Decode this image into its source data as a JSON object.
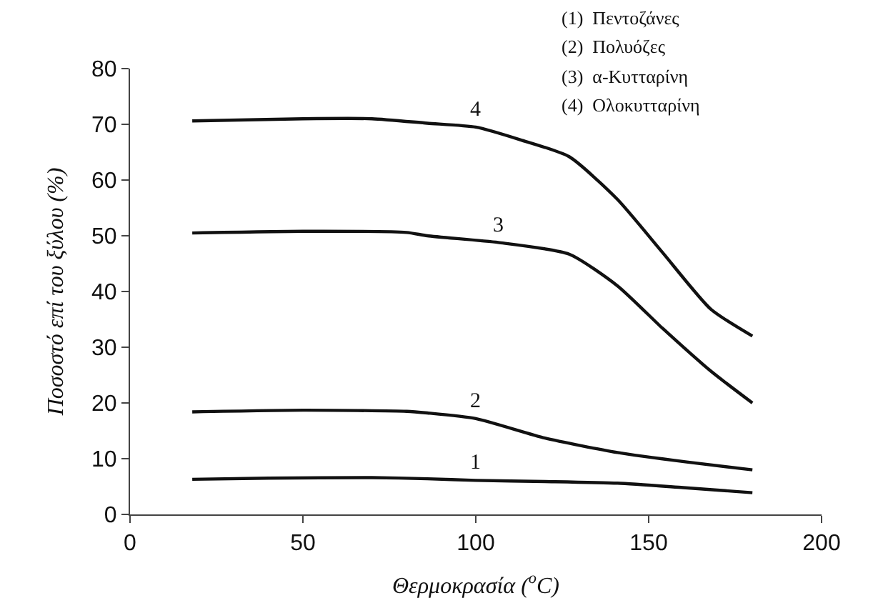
{
  "chart_data": {
    "type": "line",
    "xlabel": "Θερμοκρασία ($^{o}$C)",
    "ylabel": "Ποσοστό επί του ξύλου (%)",
    "series": [
      {
        "name": "1",
        "color": "#111111",
        "x": [
          18,
          40,
          70,
          86,
          100,
          120,
          141,
          160,
          180
        ],
        "values": [
          6.3,
          6.5,
          6.6,
          6.4,
          6.1,
          5.9,
          5.6,
          4.8,
          3.9
        ]
      },
      {
        "name": "2",
        "color": "#111111",
        "x": [
          18,
          50,
          80,
          86,
          100,
          120,
          141,
          161,
          180
        ],
        "values": [
          18.4,
          18.7,
          18.5,
          18.2,
          17.2,
          13.7,
          11.1,
          9.4,
          8
        ]
      },
      {
        "name": "3",
        "color": "#111111",
        "x": [
          18,
          50,
          80,
          86,
          106.5,
          127,
          141,
          154,
          168,
          180
        ],
        "values": [
          50.5,
          50.8,
          50.6,
          50,
          48.8,
          46.7,
          41,
          33.4,
          25.7,
          20
        ]
      },
      {
        "name": "4",
        "color": "#111111",
        "x": [
          18,
          50,
          70,
          86,
          100,
          113,
          127,
          141,
          154,
          168,
          180
        ],
        "values": [
          70.6,
          71,
          71,
          70.2,
          69.5,
          67.2,
          64.2,
          56.5,
          47,
          36.8,
          32
        ]
      }
    ],
    "xlim": [
      0,
      200
    ],
    "xticks": [
      0,
      50,
      100,
      150,
      200
    ],
    "ylim": [
      0,
      80
    ],
    "yticks": [
      0,
      10,
      20,
      30,
      40,
      50,
      60,
      70,
      80
    ],
    "legend": false,
    "marker": "none",
    "line_style": "solid",
    "annotations": [
      "(1)  Πεντοζάνες",
      "(2)  Πολυόζες",
      "(3)  α-Κυτταρίνη",
      "(4)  Ολοκυτταρίνη"
    ]
  }
}
